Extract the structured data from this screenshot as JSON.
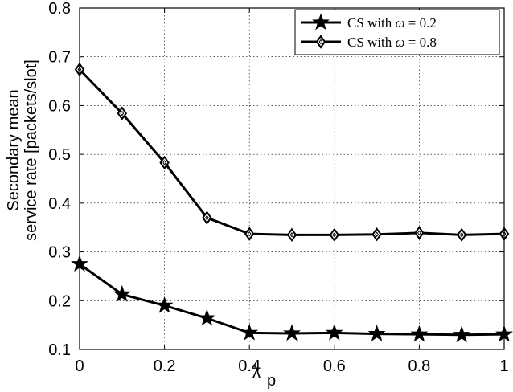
{
  "chart_data": {
    "type": "line",
    "xlabel": "λ",
    "xlabel_sub": "p",
    "ylabel": [
      "Secondary mean",
      "service rate [packets/slot]"
    ],
    "xlim": [
      0,
      1
    ],
    "ylim": [
      0.1,
      0.8
    ],
    "x_ticks": [
      0,
      0.2,
      0.4,
      0.6,
      0.8,
      1
    ],
    "x_tick_labels": [
      "0",
      "0.2",
      "0.4",
      "0.6",
      "0.8",
      "1"
    ],
    "y_ticks": [
      0.1,
      0.2,
      0.3,
      0.4,
      0.5,
      0.6,
      0.7,
      0.8
    ],
    "y_tick_labels": [
      "0.1",
      "0.2",
      "0.3",
      "0.4",
      "0.5",
      "0.6",
      "0.7",
      "0.8"
    ],
    "grid": true,
    "legend_position": "top-right",
    "x": [
      0,
      0.1,
      0.2,
      0.3,
      0.4,
      0.5,
      0.6,
      0.7,
      0.8,
      0.9,
      1.0
    ],
    "series": [
      {
        "name": "CS with ω = 0.2",
        "name_prefix": "CS with ",
        "name_omega": "ω",
        "name_suffix": " = 0.2",
        "marker": "star",
        "color": "#000000",
        "values": [
          0.275,
          0.213,
          0.19,
          0.164,
          0.134,
          0.133,
          0.134,
          0.132,
          0.131,
          0.13,
          0.131
        ]
      },
      {
        "name": "CS with ω = 0.8",
        "name_prefix": "CS with ",
        "name_omega": "ω",
        "name_suffix": " = 0.8",
        "marker": "diamond",
        "color": "#000000",
        "values": [
          0.674,
          0.584,
          0.483,
          0.37,
          0.337,
          0.335,
          0.335,
          0.336,
          0.339,
          0.335,
          0.337
        ]
      }
    ]
  }
}
